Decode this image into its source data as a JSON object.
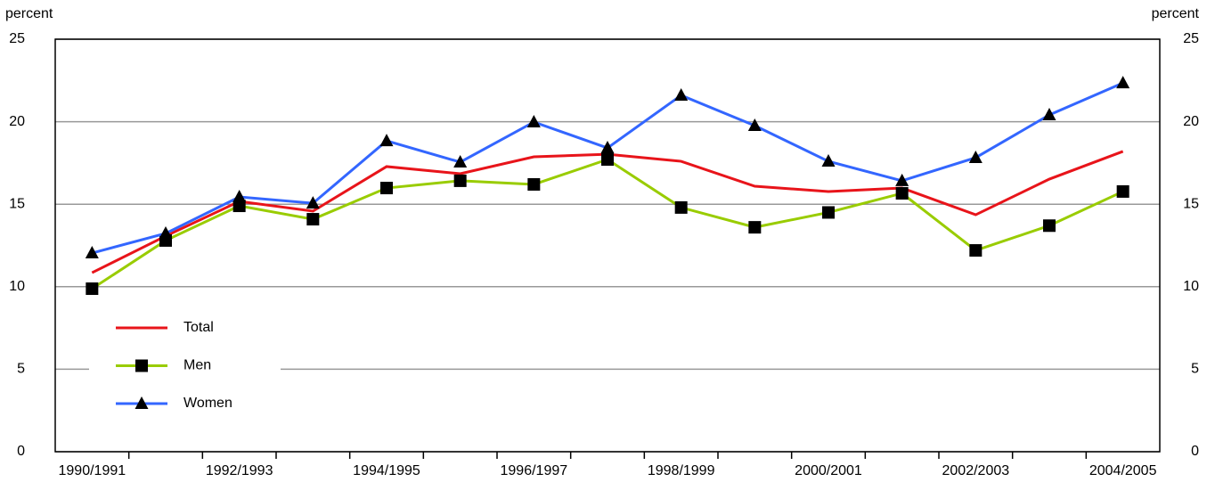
{
  "chart_data": {
    "type": "line",
    "y_label": "percent",
    "y2_label": "percent",
    "categories": [
      "1990/1991",
      null,
      "1992/1993",
      null,
      "1994/1995",
      null,
      "1996/1997",
      null,
      "1998/1999",
      null,
      "2000/2001",
      null,
      "2002/2003",
      null,
      "2004/2005"
    ],
    "series": [
      {
        "name": "Total",
        "color": "#e8141a",
        "marker": "none",
        "values": [
          10.85,
          13.07,
          15.17,
          14.58,
          17.28,
          16.85,
          17.87,
          18.03,
          17.6,
          16.09,
          15.77,
          15.98,
          14.36,
          16.52,
          18.2
        ]
      },
      {
        "name": "Men",
        "color": "#99cc00",
        "marker": "square",
        "values": [
          9.88,
          12.8,
          14.9,
          14.09,
          15.98,
          16.42,
          16.2,
          17.71,
          14.8,
          13.6,
          14.5,
          15.66,
          12.2,
          13.7,
          15.77
        ]
      },
      {
        "name": "Women",
        "color": "#3366ff",
        "marker": "triangle",
        "values": [
          12.04,
          13.23,
          15.44,
          15.06,
          18.84,
          17.55,
          19.98,
          18.41,
          21.6,
          19.76,
          17.6,
          16.42,
          17.82,
          20.41,
          22.35
        ]
      }
    ],
    "ylim": [
      0,
      25
    ],
    "yticks": [
      0,
      5,
      10,
      15,
      20,
      25
    ],
    "y2lim": [
      0,
      25
    ],
    "y2ticks": [
      0,
      5,
      10,
      15,
      20,
      25
    ],
    "grid": true,
    "legend": "lower left"
  }
}
